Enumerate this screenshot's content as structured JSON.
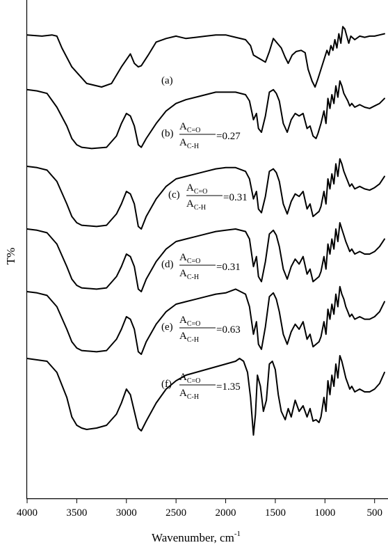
{
  "chart_data": {
    "type": "line",
    "xlabel": "Wavenumber, cm",
    "xlabel_sup": "-1",
    "ylabel": "T%",
    "xlim": [
      4000,
      400
    ],
    "x_reversed": true,
    "xticks": [
      4000,
      3500,
      3000,
      2500,
      2000,
      1500,
      1000,
      500
    ],
    "grid": false,
    "legend": "none",
    "line_color": "#000000",
    "series_labels": [
      {
        "id": "a",
        "tag": "(a)",
        "ratio": ""
      },
      {
        "id": "b",
        "tag": "(b)",
        "num": "A",
        "num_sub": "C=O",
        "den": "A",
        "den_sub": "C-H",
        "ratio": "=0.27"
      },
      {
        "id": "c",
        "tag": "(c)",
        "num": "A",
        "num_sub": "C=O",
        "den": "A",
        "den_sub": "C-H",
        "ratio": "=0.31"
      },
      {
        "id": "d",
        "tag": "(d)",
        "num": "A",
        "num_sub": "C=O",
        "den": "A",
        "den_sub": "C-H",
        "ratio": "=0.31"
      },
      {
        "id": "e",
        "tag": "(e)",
        "num": "A",
        "num_sub": "C=O",
        "den": "A",
        "den_sub": "C-H",
        "ratio": "=0.63"
      },
      {
        "id": "f",
        "tag": "(f)",
        "num": "A",
        "num_sub": "C=O",
        "den": "A",
        "den_sub": "C-H",
        "ratio": "=1.35"
      }
    ],
    "series": [
      {
        "id": "a",
        "x": [
          4000,
          3850,
          3750,
          3700,
          3650,
          3550,
          3400,
          3250,
          3150,
          3050,
          2960,
          2920,
          2880,
          2850,
          2780,
          2700,
          2600,
          2500,
          2400,
          2300,
          2200,
          2100,
          2000,
          1900,
          1800,
          1750,
          1720,
          1680,
          1640,
          1600,
          1560,
          1520,
          1480,
          1440,
          1400,
          1370,
          1330,
          1290,
          1240,
          1200,
          1170,
          1130,
          1100,
          1070,
          1040,
          1010,
          980,
          960,
          940,
          920,
          900,
          880,
          860,
          840,
          820,
          800,
          780,
          760,
          740,
          700,
          650,
          600,
          550,
          500,
          450,
          400
        ],
        "y": [
          0.99,
          0.98,
          0.99,
          0.98,
          0.88,
          0.72,
          0.58,
          0.55,
          0.58,
          0.72,
          0.83,
          0.75,
          0.72,
          0.73,
          0.82,
          0.93,
          0.96,
          0.98,
          0.96,
          0.97,
          0.98,
          0.99,
          0.99,
          0.97,
          0.95,
          0.9,
          0.82,
          0.8,
          0.78,
          0.76,
          0.85,
          0.96,
          0.92,
          0.88,
          0.8,
          0.75,
          0.82,
          0.85,
          0.86,
          0.84,
          0.7,
          0.6,
          0.55,
          0.62,
          0.7,
          0.78,
          0.86,
          0.82,
          0.9,
          0.86,
          0.95,
          0.88,
          1.0,
          0.92,
          1.06,
          1.04,
          0.98,
          0.92,
          0.98,
          0.95,
          0.98,
          0.97,
          0.98,
          0.98,
          0.99,
          1.0
        ]
      },
      {
        "id": "b",
        "x": [
          4000,
          3900,
          3800,
          3700,
          3600,
          3550,
          3500,
          3450,
          3350,
          3200,
          3100,
          3050,
          3000,
          2960,
          2920,
          2880,
          2850,
          2800,
          2700,
          2600,
          2500,
          2400,
          2300,
          2200,
          2100,
          2000,
          1900,
          1800,
          1760,
          1720,
          1690,
          1670,
          1640,
          1600,
          1560,
          1520,
          1490,
          1460,
          1420,
          1380,
          1340,
          1300,
          1260,
          1220,
          1180,
          1150,
          1120,
          1090,
          1070,
          1040,
          1010,
          990,
          970,
          950,
          930,
          910,
          890,
          870,
          850,
          830,
          810,
          790,
          770,
          750,
          730,
          700,
          650,
          600,
          550,
          500,
          450,
          400
        ],
        "y": [
          0.99,
          0.98,
          0.96,
          0.85,
          0.7,
          0.6,
          0.55,
          0.53,
          0.52,
          0.53,
          0.62,
          0.72,
          0.8,
          0.78,
          0.7,
          0.55,
          0.53,
          0.6,
          0.72,
          0.82,
          0.88,
          0.91,
          0.93,
          0.95,
          0.97,
          0.97,
          0.97,
          0.95,
          0.9,
          0.75,
          0.8,
          0.68,
          0.65,
          0.78,
          0.97,
          0.99,
          0.96,
          0.9,
          0.72,
          0.65,
          0.75,
          0.8,
          0.78,
          0.8,
          0.68,
          0.7,
          0.62,
          0.6,
          0.64,
          0.72,
          0.82,
          0.72,
          0.92,
          0.84,
          0.95,
          0.88,
          1.02,
          0.93,
          1.06,
          1.02,
          0.96,
          0.93,
          0.9,
          0.86,
          0.88,
          0.85,
          0.87,
          0.85,
          0.84,
          0.86,
          0.88,
          0.92
        ]
      },
      {
        "id": "c",
        "x": [
          4000,
          3900,
          3800,
          3700,
          3600,
          3550,
          3500,
          3450,
          3300,
          3200,
          3100,
          3050,
          3000,
          2960,
          2920,
          2880,
          2850,
          2800,
          2700,
          2600,
          2500,
          2400,
          2300,
          2200,
          2100,
          2000,
          1900,
          1800,
          1760,
          1720,
          1690,
          1670,
          1640,
          1600,
          1560,
          1520,
          1490,
          1460,
          1420,
          1380,
          1340,
          1300,
          1260,
          1220,
          1180,
          1150,
          1120,
          1090,
          1060,
          1040,
          1010,
          990,
          970,
          950,
          930,
          910,
          890,
          870,
          850,
          830,
          810,
          790,
          770,
          750,
          730,
          700,
          650,
          600,
          550,
          500,
          450,
          400
        ],
        "y": [
          1.0,
          0.99,
          0.97,
          0.88,
          0.7,
          0.6,
          0.55,
          0.53,
          0.52,
          0.53,
          0.62,
          0.7,
          0.8,
          0.78,
          0.7,
          0.52,
          0.5,
          0.6,
          0.74,
          0.84,
          0.9,
          0.92,
          0.94,
          0.96,
          0.98,
          0.99,
          0.99,
          0.96,
          0.9,
          0.74,
          0.8,
          0.66,
          0.63,
          0.76,
          0.96,
          0.98,
          0.95,
          0.88,
          0.7,
          0.62,
          0.72,
          0.78,
          0.76,
          0.8,
          0.66,
          0.7,
          0.6,
          0.62,
          0.64,
          0.68,
          0.8,
          0.7,
          0.9,
          0.82,
          0.94,
          0.86,
          1.02,
          0.92,
          1.06,
          1.02,
          0.96,
          0.92,
          0.88,
          0.84,
          0.86,
          0.82,
          0.84,
          0.82,
          0.81,
          0.83,
          0.86,
          0.92
        ]
      },
      {
        "id": "d",
        "x": [
          4000,
          3900,
          3800,
          3700,
          3600,
          3550,
          3500,
          3450,
          3300,
          3200,
          3100,
          3050,
          3000,
          2960,
          2920,
          2880,
          2850,
          2800,
          2700,
          2600,
          2500,
          2400,
          2300,
          2200,
          2100,
          2000,
          1900,
          1800,
          1760,
          1720,
          1690,
          1670,
          1640,
          1600,
          1560,
          1520,
          1490,
          1460,
          1420,
          1380,
          1340,
          1300,
          1260,
          1220,
          1180,
          1150,
          1120,
          1090,
          1060,
          1040,
          1010,
          990,
          970,
          950,
          930,
          910,
          890,
          870,
          850,
          830,
          810,
          790,
          770,
          750,
          730,
          700,
          650,
          600,
          550,
          500,
          450,
          400
        ],
        "y": [
          1.0,
          0.99,
          0.97,
          0.88,
          0.7,
          0.6,
          0.55,
          0.53,
          0.52,
          0.53,
          0.62,
          0.7,
          0.8,
          0.78,
          0.7,
          0.52,
          0.5,
          0.6,
          0.74,
          0.84,
          0.9,
          0.92,
          0.94,
          0.96,
          0.98,
          0.99,
          1.0,
          0.98,
          0.92,
          0.7,
          0.78,
          0.62,
          0.58,
          0.74,
          0.96,
          0.99,
          0.95,
          0.86,
          0.68,
          0.6,
          0.7,
          0.76,
          0.72,
          0.78,
          0.64,
          0.68,
          0.58,
          0.6,
          0.62,
          0.66,
          0.78,
          0.68,
          0.88,
          0.8,
          0.92,
          0.84,
          1.0,
          0.9,
          1.05,
          1.0,
          0.95,
          0.9,
          0.86,
          0.82,
          0.84,
          0.8,
          0.82,
          0.8,
          0.8,
          0.82,
          0.86,
          0.92
        ]
      },
      {
        "id": "e",
        "x": [
          4000,
          3900,
          3800,
          3700,
          3600,
          3550,
          3500,
          3450,
          3300,
          3200,
          3100,
          3050,
          3000,
          2960,
          2920,
          2880,
          2850,
          2800,
          2700,
          2600,
          2500,
          2400,
          2300,
          2200,
          2100,
          2000,
          1900,
          1850,
          1800,
          1760,
          1720,
          1690,
          1670,
          1640,
          1600,
          1560,
          1520,
          1490,
          1460,
          1420,
          1380,
          1340,
          1300,
          1260,
          1220,
          1180,
          1150,
          1120,
          1090,
          1060,
          1040,
          1010,
          990,
          970,
          950,
          930,
          910,
          890,
          870,
          850,
          830,
          810,
          790,
          770,
          750,
          730,
          700,
          650,
          600,
          550,
          500,
          450,
          400
        ],
        "y": [
          1.0,
          0.99,
          0.97,
          0.88,
          0.7,
          0.6,
          0.55,
          0.53,
          0.52,
          0.53,
          0.62,
          0.7,
          0.8,
          0.78,
          0.7,
          0.52,
          0.5,
          0.6,
          0.74,
          0.84,
          0.9,
          0.92,
          0.94,
          0.96,
          0.98,
          0.99,
          1.02,
          1.0,
          0.98,
          0.88,
          0.66,
          0.76,
          0.58,
          0.54,
          0.72,
          0.96,
          0.99,
          0.94,
          0.84,
          0.66,
          0.58,
          0.68,
          0.74,
          0.7,
          0.76,
          0.62,
          0.66,
          0.56,
          0.58,
          0.6,
          0.64,
          0.76,
          0.66,
          0.86,
          0.78,
          0.9,
          0.82,
          0.98,
          0.88,
          1.04,
          0.98,
          0.94,
          0.88,
          0.84,
          0.8,
          0.82,
          0.78,
          0.8,
          0.78,
          0.78,
          0.8,
          0.84,
          0.92
        ]
      },
      {
        "id": "f",
        "x": [
          4000,
          3900,
          3800,
          3700,
          3600,
          3550,
          3500,
          3450,
          3400,
          3300,
          3200,
          3100,
          3050,
          3000,
          2960,
          2920,
          2880,
          2850,
          2800,
          2700,
          2600,
          2500,
          2400,
          2300,
          2200,
          2100,
          2000,
          1900,
          1860,
          1820,
          1780,
          1750,
          1720,
          1700,
          1680,
          1650,
          1620,
          1590,
          1560,
          1530,
          1500,
          1470,
          1440,
          1400,
          1370,
          1340,
          1300,
          1260,
          1220,
          1180,
          1150,
          1120,
          1090,
          1060,
          1040,
          1010,
          990,
          970,
          950,
          930,
          910,
          890,
          870,
          850,
          830,
          810,
          790,
          770,
          750,
          730,
          700,
          650,
          600,
          550,
          500,
          450,
          400
        ],
        "y": [
          1.0,
          0.99,
          0.98,
          0.9,
          0.72,
          0.58,
          0.52,
          0.5,
          0.49,
          0.5,
          0.52,
          0.6,
          0.68,
          0.78,
          0.74,
          0.62,
          0.5,
          0.48,
          0.55,
          0.68,
          0.78,
          0.84,
          0.88,
          0.9,
          0.92,
          0.94,
          0.96,
          0.98,
          1.0,
          0.98,
          0.9,
          0.72,
          0.45,
          0.6,
          0.88,
          0.8,
          0.62,
          0.7,
          0.96,
          0.98,
          0.92,
          0.74,
          0.62,
          0.56,
          0.64,
          0.58,
          0.7,
          0.62,
          0.66,
          0.58,
          0.64,
          0.55,
          0.56,
          0.54,
          0.58,
          0.72,
          0.62,
          0.84,
          0.74,
          0.88,
          0.8,
          0.96,
          0.86,
          1.02,
          0.98,
          0.92,
          0.86,
          0.82,
          0.78,
          0.8,
          0.76,
          0.78,
          0.76,
          0.76,
          0.78,
          0.82,
          0.9
        ]
      }
    ]
  }
}
